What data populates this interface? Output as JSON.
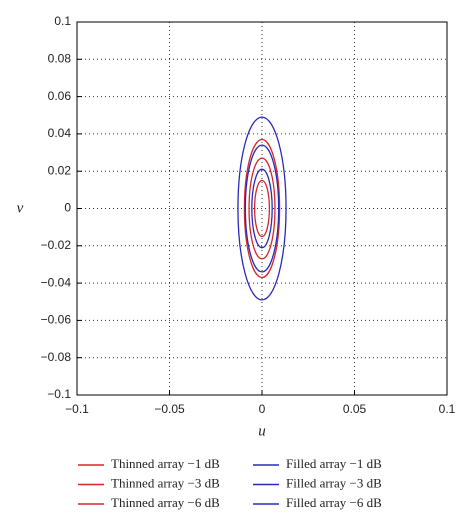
{
  "chart_data": {
    "type": "contour",
    "xlabel": "u",
    "ylabel": "v",
    "xlim": [
      -0.1,
      0.1
    ],
    "ylim": [
      -0.1,
      0.1
    ],
    "xticks": [
      {
        "value": -0.1,
        "label": "−0.1"
      },
      {
        "value": -0.05,
        "label": "−0.05"
      },
      0,
      0.05,
      0.1
    ],
    "yticks": [
      {
        "value": -0.1,
        "label": "−0.1"
      },
      {
        "value": -0.08,
        "label": "−0.08"
      },
      {
        "value": -0.06,
        "label": "−0.06"
      },
      {
        "value": -0.04,
        "label": "−0.04"
      },
      {
        "value": -0.02,
        "label": "−0.02"
      },
      0,
      0.02,
      0.04,
      0.06,
      0.08,
      0.1
    ],
    "grid": true,
    "center": [
      0,
      0
    ],
    "series": [
      {
        "name": "Thinned array −1 dB",
        "color": "#d62728",
        "u_radius": 0.004,
        "v_radius": 0.015
      },
      {
        "name": "Thinned array −3 dB",
        "color": "#d62728",
        "u_radius": 0.007,
        "v_radius": 0.027
      },
      {
        "name": "Thinned array −6 dB",
        "color": "#d62728",
        "u_radius": 0.0095,
        "v_radius": 0.037
      },
      {
        "name": "Filled array −1 dB",
        "color": "#2a2ab8",
        "u_radius": 0.0055,
        "v_radius": 0.021
      },
      {
        "name": "Filled array −3 dB",
        "color": "#2a2ab8",
        "u_radius": 0.009,
        "v_radius": 0.034
      },
      {
        "name": "Filled array −6 dB",
        "color": "#2a2ab8",
        "u_radius": 0.013,
        "v_radius": 0.049
      }
    ]
  }
}
